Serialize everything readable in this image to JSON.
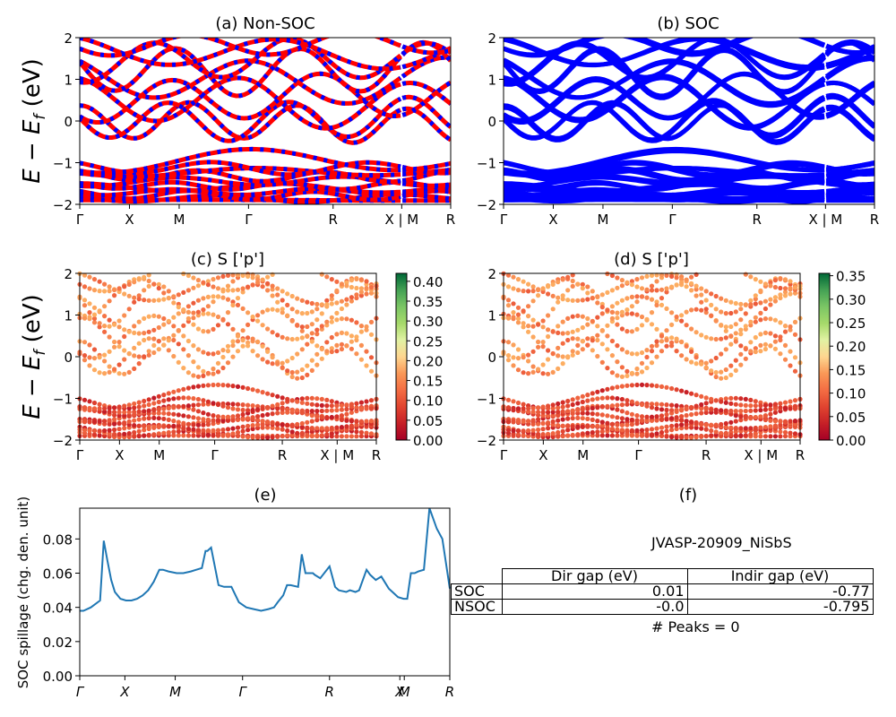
{
  "panels": {
    "a": {
      "title": "(a) Non-SOC"
    },
    "b": {
      "title": "(b) SOC"
    },
    "c": {
      "title": "(c)  S ['p']",
      "colorbar_ticks": [
        "0.00",
        "0.05",
        "0.10",
        "0.15",
        "0.20",
        "0.25",
        "0.30",
        "0.35",
        "0.40"
      ],
      "colorbar_max": 0.42
    },
    "d": {
      "title": "(d) S ['p']",
      "colorbar_ticks": [
        "0.00",
        "0.05",
        "0.10",
        "0.15",
        "0.20",
        "0.25",
        "0.30",
        "0.35"
      ],
      "colorbar_max": 0.355
    },
    "e": {
      "title": "(e)"
    },
    "f": {
      "title": "(f)"
    }
  },
  "band_axes": {
    "ylabel": "E − E_f (eV)",
    "yticks": [
      "−2",
      "−1",
      "0",
      "1",
      "2"
    ],
    "ylim": [
      -2,
      2
    ],
    "xticks": [
      "Γ",
      "X",
      "M",
      "Γ",
      "R",
      "X | M",
      "R"
    ]
  },
  "info": {
    "system": "JVASP-20909_NiSbS",
    "table": {
      "headers": [
        "",
        "Dir gap (eV)",
        "Indir gap (eV)"
      ],
      "rows": [
        {
          "label": "SOC",
          "dir": "0.01",
          "indir": "-0.77"
        },
        {
          "label": "NSOC",
          "dir": "-0.0",
          "indir": "-0.795"
        }
      ]
    },
    "peaks": "# Peaks = 0"
  },
  "colors": {
    "nonsoc_band_a": "#ff0000",
    "nonsoc_band_b": "#0000ff",
    "soc_band": "#0000ff",
    "spillage_line": "#1f77b4"
  },
  "chart_data": [
    {
      "type": "line",
      "title": "(e)",
      "ylabel": "SOC spillage (chg. den. unit)",
      "ylim": [
        0,
        0.098
      ],
      "yticks": [
        "0.00",
        "0.02",
        "0.04",
        "0.06",
        "0.08"
      ],
      "xticks": [
        "Γ",
        "X",
        "M",
        "Γ",
        "R",
        "X",
        "M",
        "R"
      ],
      "xtick_positions": [
        0,
        0.122,
        0.258,
        0.44,
        0.675,
        0.865,
        0.877,
        1
      ],
      "x": [
        0,
        0.01,
        0.03,
        0.055,
        0.065,
        0.075,
        0.085,
        0.095,
        0.11,
        0.125,
        0.14,
        0.155,
        0.17,
        0.185,
        0.2,
        0.215,
        0.225,
        0.24,
        0.262,
        0.28,
        0.3,
        0.315,
        0.33,
        0.34,
        0.345,
        0.355,
        0.375,
        0.39,
        0.41,
        0.43,
        0.45,
        0.47,
        0.49,
        0.51,
        0.525,
        0.535,
        0.55,
        0.56,
        0.57,
        0.59,
        0.6,
        0.61,
        0.63,
        0.635,
        0.65,
        0.675,
        0.69,
        0.7,
        0.72,
        0.73,
        0.745,
        0.755,
        0.775,
        0.785,
        0.8,
        0.815,
        0.835,
        0.845,
        0.86,
        0.875,
        0.885,
        0.895,
        0.905,
        0.915,
        0.93,
        0.945,
        0.965,
        0.98,
        1
      ],
      "values": [
        0.038,
        0.038,
        0.04,
        0.044,
        0.079,
        0.067,
        0.056,
        0.049,
        0.045,
        0.044,
        0.044,
        0.045,
        0.047,
        0.05,
        0.055,
        0.062,
        0.062,
        0.061,
        0.06,
        0.06,
        0.061,
        0.062,
        0.063,
        0.073,
        0.073,
        0.075,
        0.053,
        0.052,
        0.052,
        0.043,
        0.04,
        0.039,
        0.038,
        0.039,
        0.04,
        0.043,
        0.047,
        0.053,
        0.053,
        0.052,
        0.071,
        0.06,
        0.06,
        0.059,
        0.057,
        0.064,
        0.052,
        0.05,
        0.049,
        0.05,
        0.049,
        0.05,
        0.062,
        0.059,
        0.056,
        0.058,
        0.051,
        0.049,
        0.046,
        0.045,
        0.045,
        0.06,
        0.06,
        0.061,
        0.062,
        0.098,
        0.086,
        0.08,
        0.051
      ]
    }
  ]
}
